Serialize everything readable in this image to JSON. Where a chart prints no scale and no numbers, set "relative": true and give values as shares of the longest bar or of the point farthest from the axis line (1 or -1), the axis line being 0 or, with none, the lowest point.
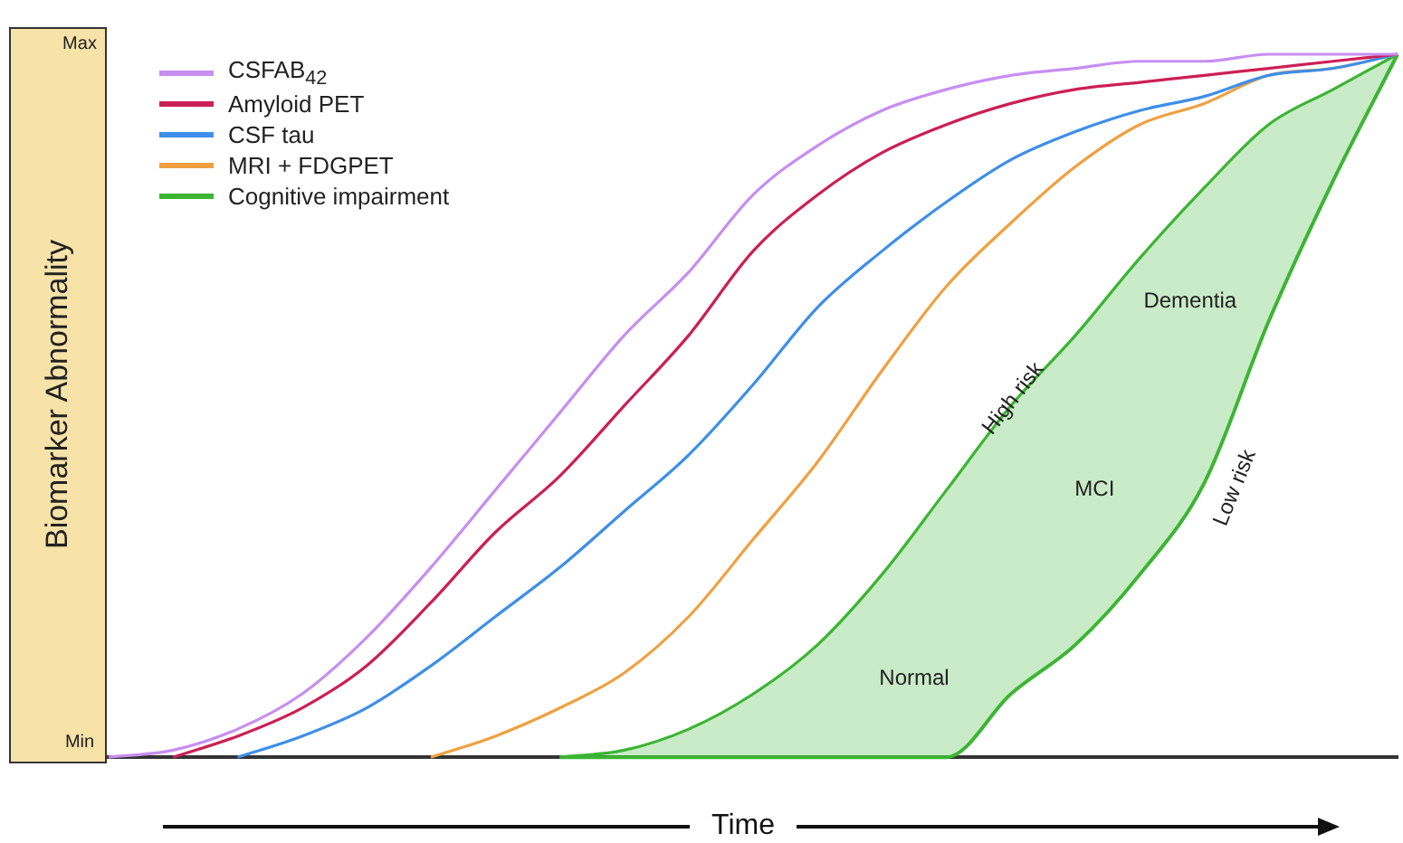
{
  "chart_data": {
    "type": "line",
    "ylabel": "Biomarker Abnormality",
    "xlabel": "Time",
    "categories": [
      null,
      null,
      null,
      null,
      null,
      null,
      null,
      null,
      null,
      null,
      null,
      null,
      null,
      null,
      null,
      null,
      null,
      null,
      null,
      null,
      null
    ],
    "relative": true,
    "grid": false,
    "legend": "top left",
    "marker": "none",
    "line_style": "solid",
    "series": [
      {
        "name": "CSFAB$_{42}$",
        "color": "#c78ef0",
        "values": [
          0,
          0.01,
          0.04,
          0.09,
          0.17,
          0.27,
          0.38,
          0.49,
          0.6,
          0.69,
          0.8,
          0.87,
          0.92,
          0.95,
          0.97,
          0.98,
          0.99,
          0.99,
          1,
          1,
          1
        ]
      },
      {
        "name": "Amyloid PET",
        "color": "#cc1f55",
        "values": [
          null,
          0,
          0.03,
          0.07,
          0.13,
          0.22,
          0.32,
          0.4,
          0.5,
          0.6,
          0.72,
          0.8,
          0.86,
          0.9,
          0.93,
          0.95,
          0.96,
          0.97,
          0.98,
          0.99,
          1
        ]
      },
      {
        "name": "CSF tau",
        "color": "#3d8fe8",
        "values": [
          null,
          null,
          0,
          0.03,
          0.07,
          0.13,
          0.2,
          0.27,
          0.35,
          0.43,
          0.53,
          0.64,
          0.72,
          0.79,
          0.85,
          0.89,
          0.92,
          0.94,
          0.97,
          0.98,
          1
        ]
      },
      {
        "name": "MRI + FDGPET",
        "color": "#f0a040",
        "values": [
          null,
          null,
          null,
          null,
          null,
          0,
          0.03,
          0.07,
          0.12,
          0.2,
          0.31,
          0.42,
          0.55,
          0.67,
          0.76,
          0.84,
          0.9,
          0.93,
          0.97,
          0.98,
          1
        ]
      },
      {
        "name": "Cognitive impairment",
        "color": "#3cb534",
        "values": [
          null,
          null,
          null,
          null,
          null,
          null,
          null,
          0,
          0.01,
          0.04,
          0.09,
          0.16,
          0.26,
          0.38,
          0.5,
          0.6,
          0.71,
          0.81,
          0.9,
          0.95,
          1
        ],
        "lower": [
          null,
          null,
          null,
          null,
          null,
          null,
          null,
          0,
          0,
          0,
          0,
          0,
          0,
          0,
          0.09,
          0.16,
          0.26,
          0.39,
          0.62,
          0.82,
          1
        ],
        "upper": [
          null,
          null,
          null,
          null,
          null,
          null,
          null,
          0,
          0.01,
          0.04,
          0.09,
          0.16,
          0.26,
          0.38,
          0.5,
          0.6,
          0.71,
          0.81,
          0.9,
          0.95,
          1
        ]
      }
    ],
    "annotations": [
      "Max",
      "Min",
      "Dementia",
      "High risk",
      "MCI",
      "Low risk",
      "Normal"
    ]
  }
}
